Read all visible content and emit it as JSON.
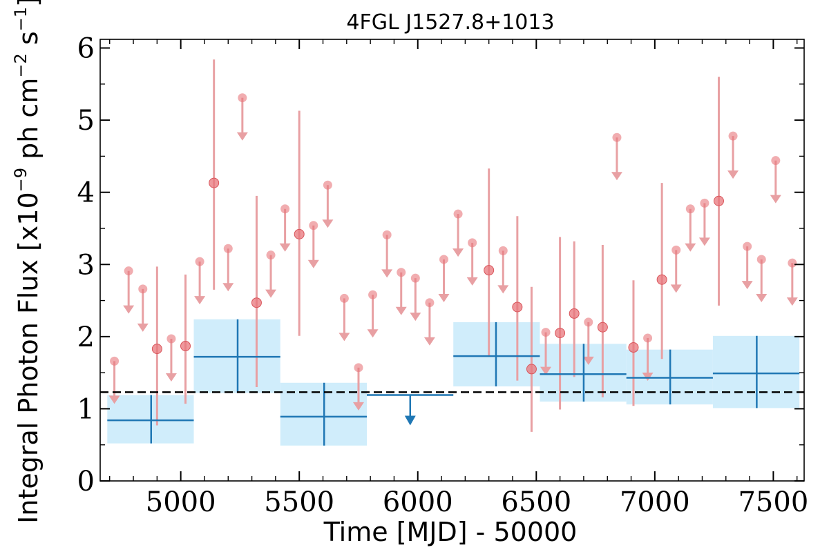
{
  "chart_data": {
    "type": "scatter",
    "title": "4FGL J1527.8+1013",
    "xlabel": "Time [MJD] - 50000",
    "ylabel": {
      "prefix": "Integral Photon Flux [x10",
      "exp1": "−9",
      "middle": " ph cm",
      "exp2": "−2",
      "s": " s",
      "exp3": "−1",
      "suffix": "]"
    },
    "xlim": [
      4660,
      7630
    ],
    "ylim": [
      0,
      6.12
    ],
    "x_ticks": [
      5000,
      5500,
      6000,
      6500,
      7000,
      7500
    ],
    "y_ticks": [
      0,
      1,
      2,
      3,
      4,
      5,
      6
    ],
    "x_minor_step": 100,
    "y_minor_step": 0.5,
    "reference_line": 1.23,
    "colors": {
      "short_marker": "#e8767b",
      "short_err": "#e8a0a3",
      "long_line": "#1f77b4",
      "long_box": "#d0edfb"
    },
    "long_bins": [
      {
        "x_start": 4690,
        "x_end": 5055,
        "x": 4875,
        "y": 0.84,
        "y_lo": 0.52,
        "y_hi": 1.19
      },
      {
        "x_start": 5055,
        "x_end": 5420,
        "x": 5240,
        "y": 1.72,
        "y_lo": 1.22,
        "y_hi": 2.24
      },
      {
        "x_start": 5420,
        "x_end": 5785,
        "x": 5605,
        "y": 0.89,
        "y_lo": 0.49,
        "y_hi": 1.36
      },
      {
        "x_start": 5785,
        "x_end": 6150,
        "x": 5968,
        "y": 1.19,
        "upper_limit": true
      },
      {
        "x_start": 6150,
        "x_end": 6515,
        "x": 6330,
        "y": 1.73,
        "y_lo": 1.31,
        "y_hi": 2.2
      },
      {
        "x_start": 6515,
        "x_end": 6880,
        "x": 6700,
        "y": 1.48,
        "y_lo": 1.1,
        "y_hi": 1.9
      },
      {
        "x_start": 6880,
        "x_end": 7245,
        "x": 7065,
        "y": 1.43,
        "y_lo": 1.06,
        "y_hi": 1.82
      },
      {
        "x_start": 7245,
        "x_end": 7610,
        "x": 7430,
        "y": 1.49,
        "y_lo": 1.01,
        "y_hi": 2.01
      }
    ],
    "short_bins": [
      {
        "x": 4720,
        "y": 1.66,
        "upper_limit": true
      },
      {
        "x": 4780,
        "y": 2.91,
        "upper_limit": true
      },
      {
        "x": 4840,
        "y": 2.66,
        "upper_limit": true
      },
      {
        "x": 4900,
        "y": 1.83,
        "y_lo": 0.77,
        "y_hi": 2.97
      },
      {
        "x": 4960,
        "y": 1.97,
        "upper_limit": true
      },
      {
        "x": 5020,
        "y": 1.87,
        "y_lo": 1.07,
        "y_hi": 2.86
      },
      {
        "x": 5080,
        "y": 3.04,
        "upper_limit": true
      },
      {
        "x": 5140,
        "y": 4.13,
        "y_lo": 2.65,
        "y_hi": 5.84
      },
      {
        "x": 5200,
        "y": 3.22,
        "upper_limit": true
      },
      {
        "x": 5260,
        "y": 5.31,
        "upper_limit": true
      },
      {
        "x": 5320,
        "y": 2.47,
        "y_lo": 1.3,
        "y_hi": 3.95
      },
      {
        "x": 5380,
        "y": 3.13,
        "upper_limit": true
      },
      {
        "x": 5440,
        "y": 3.77,
        "upper_limit": true
      },
      {
        "x": 5500,
        "y": 3.42,
        "y_lo": 2.01,
        "y_hi": 5.13
      },
      {
        "x": 5560,
        "y": 3.54,
        "upper_limit": true
      },
      {
        "x": 5620,
        "y": 4.1,
        "upper_limit": true
      },
      {
        "x": 5690,
        "y": 2.53,
        "upper_limit": true
      },
      {
        "x": 5750,
        "y": 1.57,
        "upper_limit": true
      },
      {
        "x": 5810,
        "y": 2.58,
        "upper_limit": true
      },
      {
        "x": 5870,
        "y": 3.41,
        "upper_limit": true
      },
      {
        "x": 5930,
        "y": 2.89,
        "upper_limit": true
      },
      {
        "x": 5990,
        "y": 2.81,
        "upper_limit": true
      },
      {
        "x": 6050,
        "y": 2.47,
        "upper_limit": true
      },
      {
        "x": 6110,
        "y": 3.07,
        "upper_limit": true
      },
      {
        "x": 6170,
        "y": 3.7,
        "upper_limit": true
      },
      {
        "x": 6230,
        "y": 3.3,
        "upper_limit": true
      },
      {
        "x": 6300,
        "y": 2.92,
        "y_lo": 1.73,
        "y_hi": 4.33
      },
      {
        "x": 6360,
        "y": 3.19,
        "upper_limit": true
      },
      {
        "x": 6420,
        "y": 2.41,
        "y_lo": 1.39,
        "y_hi": 3.67
      },
      {
        "x": 6480,
        "y": 1.55,
        "y_lo": 0.68,
        "y_hi": 2.69
      },
      {
        "x": 6540,
        "y": 2.06,
        "upper_limit": true
      },
      {
        "x": 6600,
        "y": 2.05,
        "y_lo": 0.99,
        "y_hi": 3.38
      },
      {
        "x": 6660,
        "y": 2.32,
        "y_lo": 1.44,
        "y_hi": 3.32
      },
      {
        "x": 6720,
        "y": 2.2,
        "upper_limit": true
      },
      {
        "x": 6780,
        "y": 2.13,
        "y_lo": 1.16,
        "y_hi": 3.27
      },
      {
        "x": 6840,
        "y": 4.76,
        "upper_limit": true
      },
      {
        "x": 6910,
        "y": 1.85,
        "y_lo": 1.04,
        "y_hi": 2.78
      },
      {
        "x": 6970,
        "y": 1.98,
        "upper_limit": true
      },
      {
        "x": 7030,
        "y": 2.79,
        "y_lo": 1.69,
        "y_hi": 4.13
      },
      {
        "x": 7090,
        "y": 3.2,
        "upper_limit": true
      },
      {
        "x": 7150,
        "y": 3.77,
        "upper_limit": true
      },
      {
        "x": 7210,
        "y": 3.85,
        "upper_limit": true
      },
      {
        "x": 7270,
        "y": 3.88,
        "y_lo": 2.43,
        "y_hi": 5.6
      },
      {
        "x": 7330,
        "y": 4.78,
        "upper_limit": true
      },
      {
        "x": 7390,
        "y": 3.25,
        "upper_limit": true
      },
      {
        "x": 7450,
        "y": 3.07,
        "upper_limit": true
      },
      {
        "x": 7510,
        "y": 4.44,
        "upper_limit": true
      },
      {
        "x": 7580,
        "y": 3.02,
        "upper_limit": true
      }
    ]
  }
}
